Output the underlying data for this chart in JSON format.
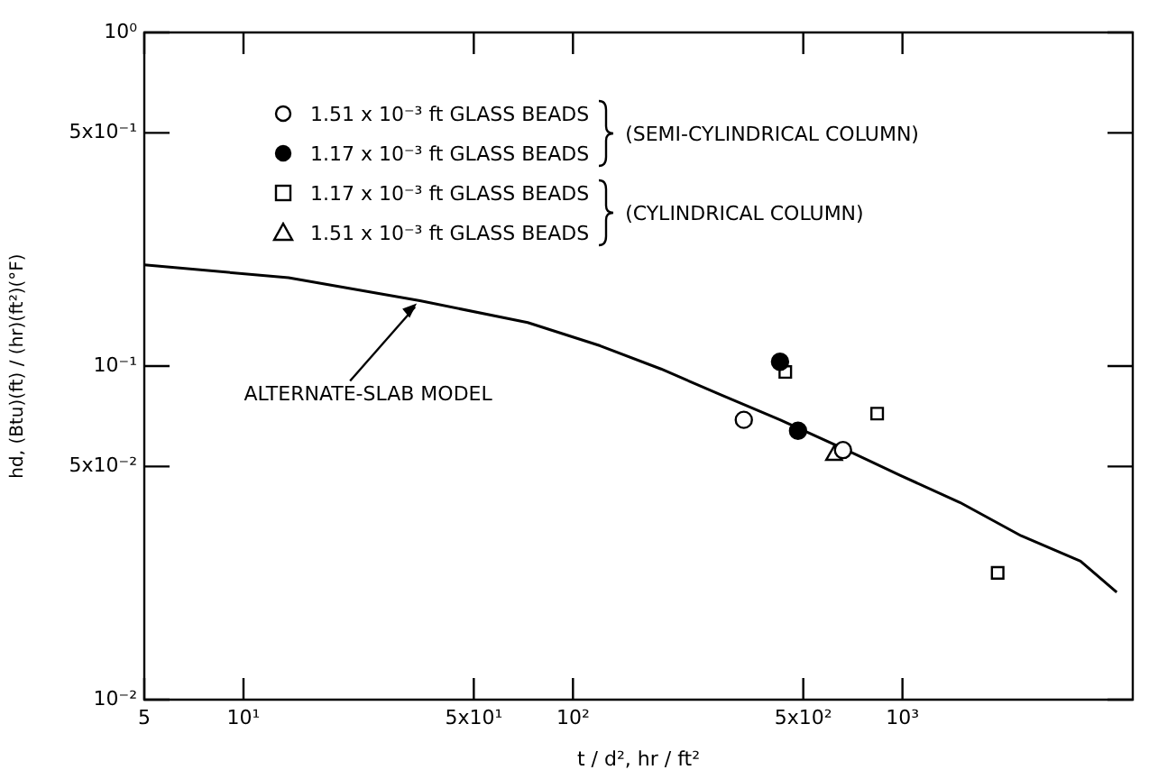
{
  "chart_data": {
    "type": "scatter",
    "xlabel": "t / d², hr / ft²",
    "ylabel": "hd, (Btu)(ft) / (hr)(ft²)(°F)",
    "log": "xy",
    "grid": false,
    "legend": "top",
    "xlim": [
      5,
      5000
    ],
    "xticks": [
      5,
      {
        "value": 10,
        "label": "10¹"
      },
      {
        "value": 50,
        "label": "5x10¹"
      },
      {
        "value": 100,
        "label": "10²"
      },
      {
        "value": 500,
        "label": "5x10²"
      },
      {
        "value": 1000,
        "label": "10³"
      }
    ],
    "ylim": [
      0.01,
      1
    ],
    "yticks": [
      {
        "value": 0.01,
        "label": "10⁻²"
      },
      {
        "value": 0.05,
        "label": "5x10⁻²"
      },
      {
        "value": 0.1,
        "label": "10⁻¹"
      },
      {
        "value": 0.5,
        "label": "5x10⁻¹"
      },
      {
        "value": 1,
        "label": "10⁰"
      }
    ],
    "annotations": [
      "(SEMI-CYLINDRICAL COLUMN)",
      "(CYLINDRICAL COLUMN)",
      {
        "text": "ALTERNATE-SLAB MODEL",
        "x": 34,
        "y": 0.156
      }
    ],
    "series": [
      {
        "name": "1.51 x 10⁻³ ft GLASS BEADS",
        "color": "#ffffff",
        "marker": "circle",
        "x": [
          330,
          660
        ],
        "values": [
          0.069,
          0.056
        ]
      },
      {
        "name": "1.17 x 10⁻³ ft GLASS BEADS",
        "color": "#000000",
        "marker": "circle",
        "x": [
          425,
          482
        ],
        "values": [
          0.103,
          0.064
        ]
      },
      {
        "name": "1.17 x 10⁻³ ft GLASS BEADS",
        "color": "#ffffff",
        "marker": "square",
        "x": [
          441,
          838,
          1945
        ],
        "values": [
          0.096,
          0.072,
          0.024
        ]
      },
      {
        "name": "1.51 x 10⁻³ ft GLASS BEADS",
        "color": "#ffffff",
        "marker": "triangle",
        "x": [
          620
        ],
        "values": [
          0.054
        ]
      },
      {
        "type": "line",
        "color": "#000000",
        "marker": "none",
        "line_style": "solid",
        "x": [
          5,
          13.7,
          34.3,
          72.9,
          121,
          185,
          281,
          425,
          651,
          986,
          1494,
          2291,
          3470,
          4470
        ],
        "values": [
          0.201,
          0.184,
          0.157,
          0.135,
          0.115,
          0.098,
          0.082,
          0.069,
          0.057,
          0.047,
          0.039,
          0.031,
          0.026,
          0.021
        ]
      }
    ]
  }
}
